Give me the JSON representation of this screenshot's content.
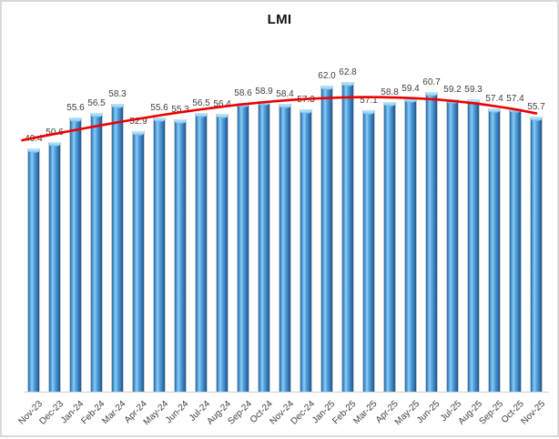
{
  "chart_data": {
    "type": "bar",
    "title": "LMI",
    "categories": [
      "Nov-23",
      "Dec-23",
      "Jan-24",
      "Feb-24",
      "Mar-24",
      "Apr-24",
      "May-24",
      "Jun-24",
      "Jul-24",
      "Aug-24",
      "Sep-24",
      "Oct-24",
      "Nov-24",
      "Dec-24",
      "Jan-25",
      "Feb-25",
      "Mar-25",
      "Apr-25",
      "May-25",
      "Jun-25",
      "Jul-25",
      "Aug-25",
      "Sep-25",
      "Oct-25",
      "Nov-25"
    ],
    "values": [
      49.4,
      50.6,
      55.6,
      56.5,
      58.3,
      52.9,
      55.6,
      55.3,
      56.5,
      56.4,
      58.6,
      58.9,
      58.4,
      57.3,
      62.0,
      62.8,
      57.1,
      58.8,
      59.4,
      60.7,
      59.2,
      59.3,
      57.4,
      57.4,
      55.7
    ],
    "xlabel": "",
    "ylabel": "",
    "ylim": [
      0,
      65
    ],
    "gridlines": false,
    "legend": "none",
    "y_axis_visible": false,
    "data_labels": {
      "show": true,
      "position": "outside-end",
      "decimals": 1
    },
    "trendline": {
      "type": "polynomial",
      "order": 3,
      "color": "#ee0000"
    },
    "colors": {
      "bar": "#4393d4",
      "bar_edge": "#2c6aa3",
      "bar_cap": "#a9dbf8",
      "trendline": "#ee0000",
      "axis_line": "#cfcfcf",
      "label_text": "#404040",
      "title_text": "#121212",
      "frame_border": "#d9d9d9"
    }
  }
}
